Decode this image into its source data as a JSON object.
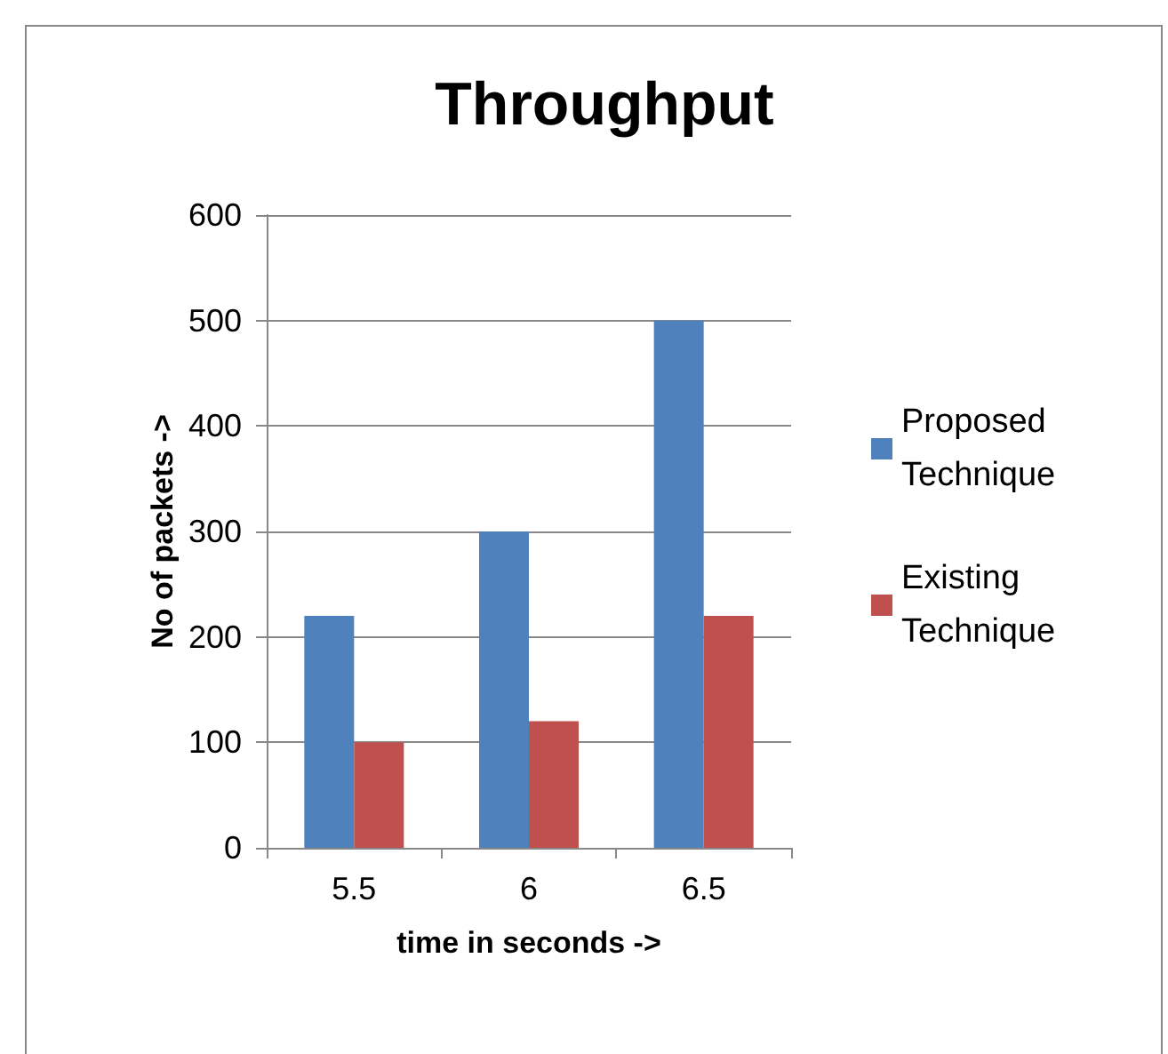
{
  "chart_data": {
    "type": "bar",
    "title": "Throughput",
    "xlabel": "time in seconds ->",
    "ylabel": "No of packets ->",
    "categories": [
      "5.5",
      "6",
      "6.5"
    ],
    "series": [
      {
        "name": "Proposed Technique",
        "color": "#4f81bd",
        "values": [
          220,
          300,
          500
        ]
      },
      {
        "name": "Existing Technique",
        "color": "#c0504d",
        "values": [
          100,
          120,
          220
        ]
      }
    ],
    "ylim": [
      0,
      600
    ],
    "yticks": [
      0,
      100,
      200,
      300,
      400,
      500,
      600
    ],
    "grid": "y",
    "legend": "right"
  }
}
